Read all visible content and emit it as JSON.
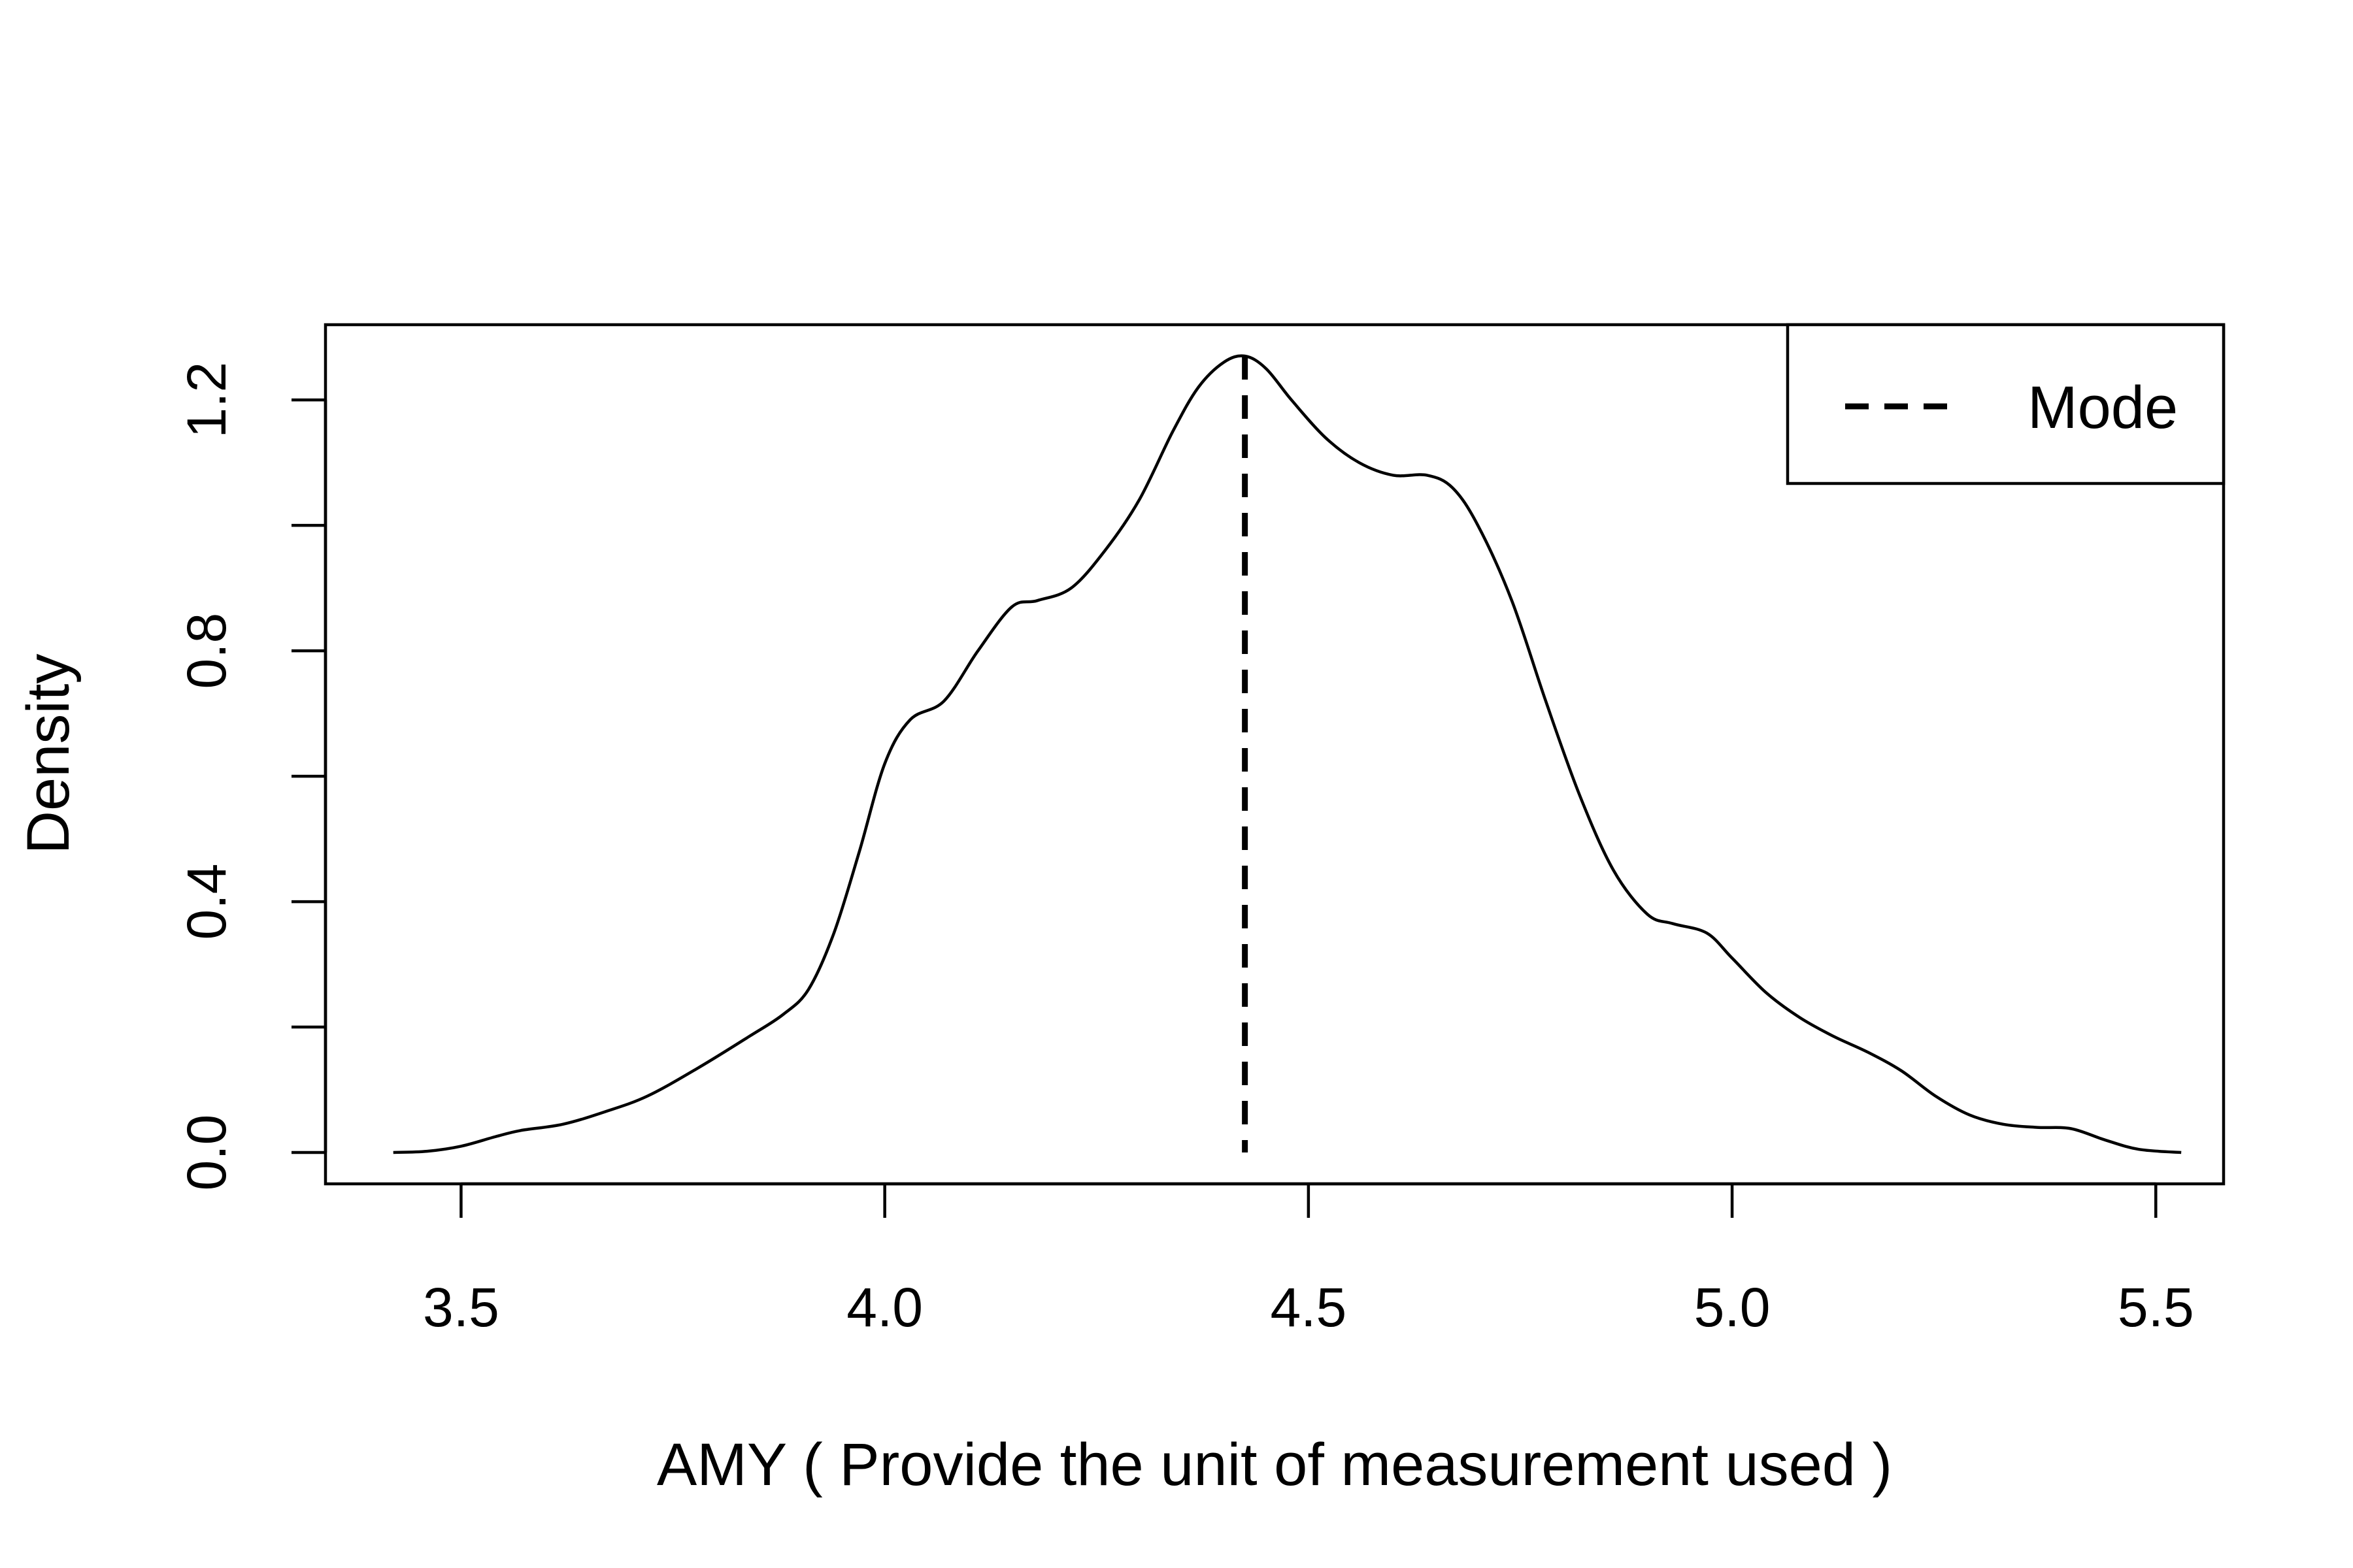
{
  "chart_data": {
    "type": "line",
    "title": "",
    "xlabel": "AMY ( Provide the unit of measurement used )",
    "ylabel": "Density",
    "xlim": [
      3.34,
      5.58
    ],
    "ylim": [
      -0.05,
      1.32
    ],
    "x_ticks": [
      3.5,
      4.0,
      4.5,
      5.0,
      5.5
    ],
    "x_tick_labels": [
      "3.5",
      "4.0",
      "4.5",
      "5.0",
      "5.5"
    ],
    "y_ticks": [
      0.0,
      0.2,
      0.4,
      0.6,
      0.8,
      1.0,
      1.2
    ],
    "y_tick_labels": [
      "0.0",
      "",
      "0.4",
      "",
      "0.8",
      "",
      "1.2"
    ],
    "grid": false,
    "series": [
      {
        "x": [
          3.42,
          3.46,
          3.5,
          3.54,
          3.57,
          3.62,
          3.67,
          3.72,
          3.78,
          3.84,
          3.88,
          3.91,
          3.94,
          3.97,
          4.0,
          4.03,
          4.07,
          4.11,
          4.15,
          4.18,
          4.22,
          4.26,
          4.3,
          4.34,
          4.37,
          4.4,
          4.425,
          4.45,
          4.48,
          4.52,
          4.56,
          4.6,
          4.64,
          4.67,
          4.7,
          4.74,
          4.78,
          4.82,
          4.86,
          4.9,
          4.93,
          4.97,
          5.0,
          5.04,
          5.08,
          5.12,
          5.16,
          5.2,
          5.24,
          5.28,
          5.32,
          5.36,
          5.4,
          5.44,
          5.48,
          5.53
        ],
        "y": [
          0.0,
          0.002,
          0.01,
          0.025,
          0.035,
          0.045,
          0.065,
          0.09,
          0.135,
          0.185,
          0.22,
          0.26,
          0.35,
          0.48,
          0.62,
          0.69,
          0.72,
          0.8,
          0.87,
          0.88,
          0.9,
          0.96,
          1.04,
          1.15,
          1.22,
          1.26,
          1.27,
          1.25,
          1.2,
          1.14,
          1.1,
          1.08,
          1.08,
          1.06,
          1.0,
          0.88,
          0.72,
          0.57,
          0.45,
          0.38,
          0.365,
          0.35,
          0.31,
          0.255,
          0.215,
          0.185,
          0.16,
          0.13,
          0.09,
          0.06,
          0.045,
          0.04,
          0.038,
          0.02,
          0.005,
          0.0
        ]
      }
    ],
    "reference_lines": [
      {
        "name": "Mode",
        "x": 4.425,
        "style": "dashed"
      }
    ],
    "legend": {
      "position": "top-right",
      "entries": [
        {
          "label": "Mode",
          "line_style": "dashed"
        }
      ]
    }
  }
}
